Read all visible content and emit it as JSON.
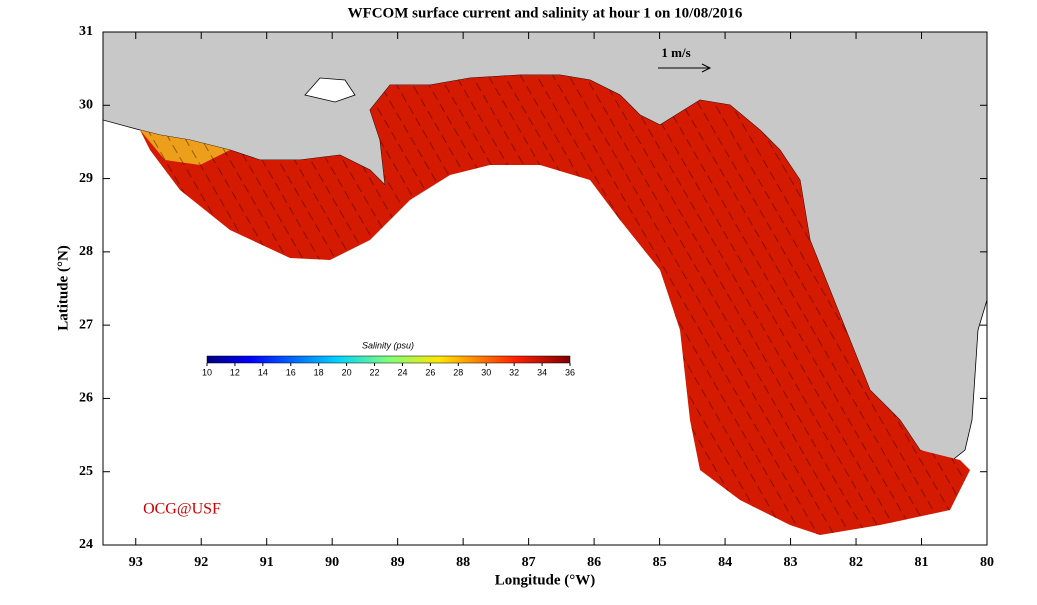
{
  "map": {
    "title": "WFCOM surface current and salinity at hour 1 on 10/08/2016",
    "x_label": "Longitude (°W)",
    "y_label": "Latitude (°N)",
    "xlim": [
      93.5,
      80
    ],
    "xticks": [
      93,
      92,
      91,
      90,
      89,
      88,
      87,
      86,
      85,
      84,
      83,
      82,
      81,
      80
    ],
    "ylim": [
      24,
      31
    ],
    "yticks": [
      24,
      25,
      26,
      27,
      28,
      29,
      30,
      31
    ],
    "colorbar": {
      "title": "Salinity (psu)",
      "lim": [
        10,
        36
      ],
      "ticks": [
        10,
        12,
        14,
        16,
        18,
        20,
        22,
        24,
        26,
        28,
        30,
        32,
        34,
        36
      ]
    },
    "scale_label": "1 m/s",
    "credit": "OCG@USF"
  }
}
